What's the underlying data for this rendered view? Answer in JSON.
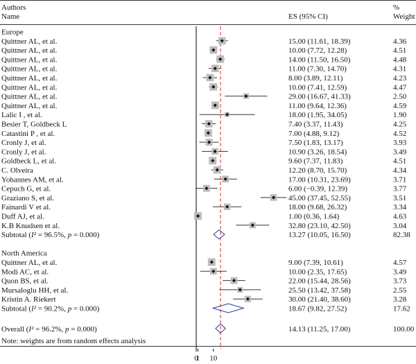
{
  "header": {
    "authors_label": "Authors",
    "name_label": "Name",
    "es_label": "ES (95% CI)",
    "pct_label": "%",
    "weight_label": "Weight"
  },
  "colors": {
    "square": "#bdbdbd",
    "line": "#333333",
    "diamond": "#1f3b99",
    "overall_line": "#e02424"
  },
  "chart_data": {
    "type": "forest",
    "x_ticks": [
      {
        "value": 0,
        "label": "0"
      },
      {
        "value": 1,
        "label": "1"
      },
      {
        "value": 10,
        "label": "10"
      }
    ],
    "null_line": 0,
    "overall_line_value": 14.13,
    "groups": [
      {
        "name": "Europe",
        "studies": [
          {
            "author": "Quittner AL, et al.",
            "es": 15.0,
            "lo": 11.61,
            "hi": 18.39,
            "es_text": "15.00 (11.61, 18.39)",
            "weight": "4.36"
          },
          {
            "author": "Quittner AL, et al.",
            "es": 10.0,
            "lo": 7.72,
            "hi": 12.28,
            "es_text": "10.00 (7.72, 12.28)",
            "weight": "4.51"
          },
          {
            "author": "Quittner AL, et al.",
            "es": 14.0,
            "lo": 11.5,
            "hi": 16.5,
            "es_text": "14.00 (11.50, 16.50)",
            "weight": "4.48"
          },
          {
            "author": "Quittner AL, et al.",
            "es": 11.0,
            "lo": 7.3,
            "hi": 14.7,
            "es_text": "11.00 (7.30, 14.70)",
            "weight": "4.31"
          },
          {
            "author": "Quittner AL, et al.",
            "es": 8.0,
            "lo": 3.89,
            "hi": 12.11,
            "es_text": "8.00 (3.89, 12.11)",
            "weight": "4.23"
          },
          {
            "author": "Quittner AL, et al.",
            "es": 10.0,
            "lo": 7.41,
            "hi": 12.59,
            "es_text": "10.00 (7.41, 12.59)",
            "weight": "4.47"
          },
          {
            "author": "Quittner AL, et al.",
            "es": 29.0,
            "lo": 16.67,
            "hi": 41.33,
            "es_text": "29.00 (16.67, 41.33)",
            "weight": "2.50"
          },
          {
            "author": "Quittner AL, et al.",
            "es": 11.0,
            "lo": 9.64,
            "hi": 12.36,
            "es_text": "11.00 (9.64, 12.36)",
            "weight": "4.59"
          },
          {
            "author": "Lalic I , et al.",
            "es": 18.0,
            "lo": 1.95,
            "hi": 34.05,
            "es_text": "18.00 (1.95, 34.05)",
            "weight": "1.90"
          },
          {
            "author": "Besier T, Goldbeck L",
            "es": 7.4,
            "lo": 3.37,
            "hi": 11.43,
            "es_text": "7.40 (3.37, 11.43)",
            "weight": "4.25"
          },
          {
            "author": "Catastini P , et al.",
            "es": 7.0,
            "lo": 4.88,
            "hi": 9.12,
            "es_text": "7.00 (4.88, 9.12)",
            "weight": "4.52"
          },
          {
            "author": "Cronly J, et al.",
            "es": 7.5,
            "lo": 1.83,
            "hi": 13.17,
            "es_text": "7.50 (1.83, 13.17)",
            "weight": "3.93"
          },
          {
            "author": "Cronly J, et al.",
            "es": 10.9,
            "lo": 3.26,
            "hi": 18.54,
            "es_text": "10.90 (3.26, 18.54)",
            "weight": "3.49"
          },
          {
            "author": "Goldbeck L, et al.",
            "es": 9.6,
            "lo": 7.37,
            "hi": 11.83,
            "es_text": "9.60 (7.37, 11.83)",
            "weight": "4.51"
          },
          {
            "author": "C. Olveira",
            "es": 12.2,
            "lo": 8.7,
            "hi": 15.7,
            "es_text": "12.20 (8.70, 15.70)",
            "weight": "4.34"
          },
          {
            "author": "Yohannes AM, et al.",
            "es": 17.0,
            "lo": 10.31,
            "hi": 23.69,
            "es_text": "17.00 (10.31, 23.69)",
            "weight": "3.71"
          },
          {
            "author": "Cepuch G, et al.",
            "es": 6.0,
            "lo": -0.39,
            "hi": 12.39,
            "es_text": "6.00 (−0.39, 12.39)",
            "weight": "3.77"
          },
          {
            "author": "Graziano S, et al.",
            "es": 45.0,
            "lo": 37.45,
            "hi": 52.55,
            "es_text": "45.00 (37.45, 52.55)",
            "weight": "3.51"
          },
          {
            "author": "Fainardi V et al.",
            "es": 18.0,
            "lo": 9.68,
            "hi": 26.32,
            "es_text": "18.00 (9.68, 26.32)",
            "weight": "3.34"
          },
          {
            "author": "Duff AJ, et al.",
            "es": 1.0,
            "lo": 0.36,
            "hi": 1.64,
            "es_text": "1.00 (0.36, 1.64)",
            "weight": "4.63"
          },
          {
            "author": "K.B Knudsen et al.",
            "es": 32.8,
            "lo": 23.1,
            "hi": 42.5,
            "es_text": "32.80 (23.10, 42.50)",
            "weight": "3.04"
          }
        ],
        "subtotal": {
          "label": "Subtotal (I² = 96.5%, p = 0.000)",
          "es": 13.27,
          "lo": 10.05,
          "hi": 16.5,
          "es_text": "13.27 (10.05, 16.50)",
          "weight": "82.38"
        }
      },
      {
        "name": "North America",
        "studies": [
          {
            "author": "Quittner AL, et al.",
            "es": 9.0,
            "lo": 7.39,
            "hi": 10.61,
            "es_text": "9.00 (7.39, 10.61)",
            "weight": "4.57"
          },
          {
            "author": "Modi AC, et al.",
            "es": 10.0,
            "lo": 2.35,
            "hi": 17.65,
            "es_text": "10.00 (2.35, 17.65)",
            "weight": "3.49"
          },
          {
            "author": "Quon BS, et al.",
            "es": 22.0,
            "lo": 15.44,
            "hi": 28.56,
            "es_text": "22.00 (15.44, 28.56)",
            "weight": "3.73"
          },
          {
            "author": "Mursaloglu HH, et al.",
            "es": 25.5,
            "lo": 13.42,
            "hi": 37.58,
            "es_text": "25.50 (13.42, 37.58)",
            "weight": "2.55"
          },
          {
            "author": "Kristin A. Riekert",
            "es": 30.0,
            "lo": 21.4,
            "hi": 38.6,
            "es_text": "30.00 (21.40, 38.60)",
            "weight": "3.28"
          }
        ],
        "subtotal": {
          "label": "Subtotal (I² = 90.2%, p = 0.000)",
          "es": 18.67,
          "lo": 9.82,
          "hi": 27.52,
          "es_text": "18.67 (9.82, 27.52)",
          "weight": "17.62"
        }
      }
    ],
    "overall": {
      "label": "Overall (I² = 96.2%, p = 0.000)",
      "es": 14.13,
      "lo": 11.25,
      "hi": 17.0,
      "es_text": "14.13 (11.25, 17.00)",
      "weight": "100.00"
    },
    "note": "Note: weights are from random effects analysis"
  }
}
